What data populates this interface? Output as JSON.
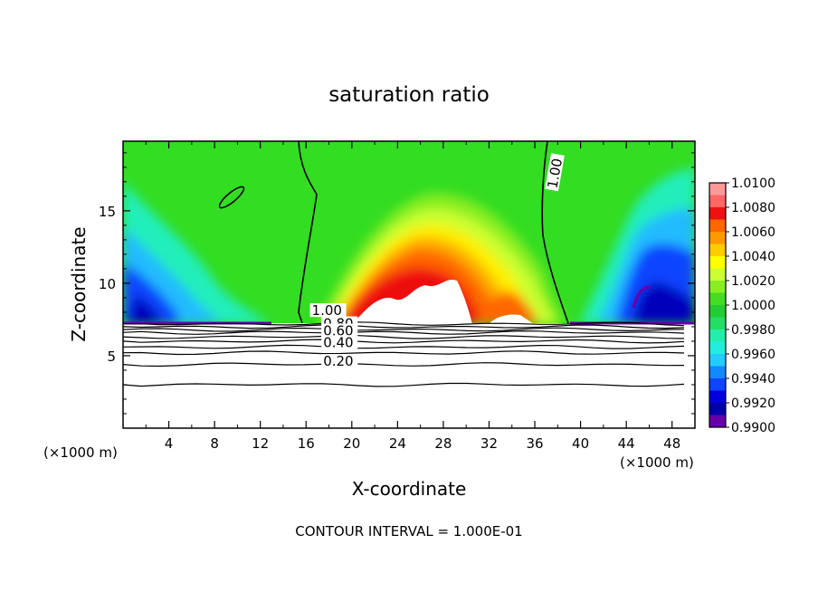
{
  "chart_data": {
    "type": "heatmap",
    "title": "saturation ratio",
    "xlabel": "X-coordinate",
    "ylabel": "Z-coordinate",
    "x_unit": "(×1000 m)",
    "z_unit": "(×1000 m)",
    "xlim": [
      0,
      50
    ],
    "ylim": [
      0,
      19.8
    ],
    "x_ticks": [
      4,
      8,
      12,
      16,
      20,
      24,
      28,
      32,
      36,
      40,
      44,
      48
    ],
    "y_ticks": [
      5,
      10,
      15
    ],
    "footnote": "CONTOUR INTERVAL = 1.000E-01",
    "colorbar": {
      "labels": [
        "1.0100",
        "1.0080",
        "1.0060",
        "1.0040",
        "1.0020",
        "1.0000",
        "0.9980",
        "0.9960",
        "0.9940",
        "0.9920",
        "0.9900"
      ],
      "colors": [
        "#ff9999",
        "#ff6666",
        "#ee1111",
        "#ff6600",
        "#ff9900",
        "#ffcc00",
        "#ffff00",
        "#ccff33",
        "#88ee22",
        "#44dd22",
        "#22cc33",
        "#22dd66",
        "#22eeaa",
        "#22eedd",
        "#22ccff",
        "#1188ff",
        "#1144ff",
        "#0000dd",
        "#0000aa",
        "#6600aa"
      ]
    },
    "contour_labels": [
      {
        "text": "1.00",
        "x": 16.5,
        "z": 7.8
      },
      {
        "text": "1.00",
        "x": 36.8,
        "z": 16.8
      },
      {
        "text": "0.80",
        "x": 17.5,
        "z": 6.9
      },
      {
        "text": "0.60",
        "x": 17.5,
        "z": 6.4
      },
      {
        "text": "0.40",
        "x": 17.5,
        "z": 5.6
      },
      {
        "text": "0.20",
        "x": 17.5,
        "z": 4.3
      }
    ],
    "contour_levels_z": [
      7.2,
      7.0,
      6.8,
      6.6,
      6.3,
      6.0,
      5.6,
      5.2,
      4.4,
      3.0
    ]
  }
}
